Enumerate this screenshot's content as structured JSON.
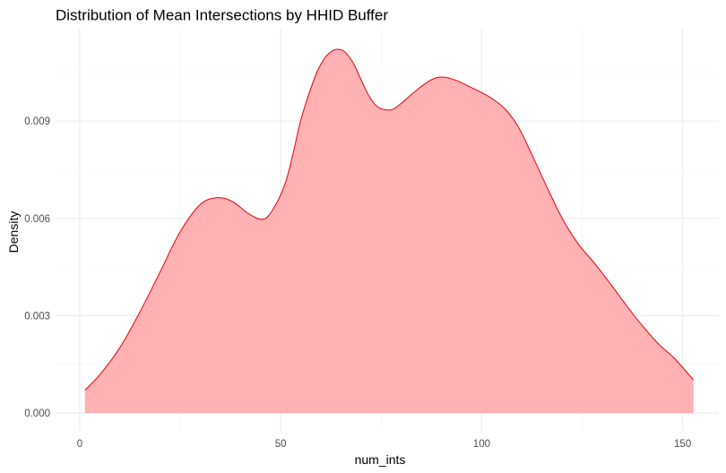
{
  "chart_data": {
    "type": "area",
    "title": "Distribution of Mean Intersections by HHID Buffer",
    "xlabel": "num_ints",
    "ylabel": "Density",
    "xlim": [
      -6,
      159
    ],
    "ylim": [
      -0.00055,
      0.01185
    ],
    "x_ticks": [
      0,
      50,
      100,
      150
    ],
    "x_tick_labels": [
      "0",
      "50",
      "100",
      "150"
    ],
    "y_ticks": [
      0,
      0.003,
      0.006,
      0.009
    ],
    "y_tick_labels": [
      "0.000",
      "0.003",
      "0.006",
      "0.009"
    ],
    "grid": true,
    "legend": "none",
    "fill_color": "#ffb1b4",
    "line_color": "#e8000b",
    "series": [
      {
        "x": [
          1.3,
          5,
          10,
          15,
          20,
          25,
          30,
          34.3,
          38,
          42,
          45.5,
          48,
          51,
          53,
          55,
          57,
          59,
          61,
          63,
          64.5,
          66,
          68,
          70,
          72,
          74,
          76,
          78,
          80,
          83,
          86,
          88.5,
          91,
          94,
          97,
          100,
          103,
          106,
          109,
          112,
          116,
          120,
          124,
          128,
          132,
          136,
          140,
          144,
          148,
          152.7
        ],
        "y": [
          0.00071,
          0.00118,
          0.00202,
          0.00312,
          0.00435,
          0.00559,
          0.00643,
          0.00664,
          0.00652,
          0.00615,
          0.00597,
          0.00626,
          0.00704,
          0.00796,
          0.00903,
          0.00983,
          0.0105,
          0.01095,
          0.01118,
          0.01121,
          0.01113,
          0.0108,
          0.01028,
          0.00977,
          0.00945,
          0.00935,
          0.00937,
          0.00955,
          0.00987,
          0.01016,
          0.01033,
          0.01035,
          0.01024,
          0.01006,
          0.00988,
          0.00966,
          0.00935,
          0.00885,
          0.0081,
          0.00703,
          0.00601,
          0.00522,
          0.00463,
          0.00399,
          0.00332,
          0.00269,
          0.00213,
          0.00168,
          0.00102
        ]
      }
    ]
  }
}
